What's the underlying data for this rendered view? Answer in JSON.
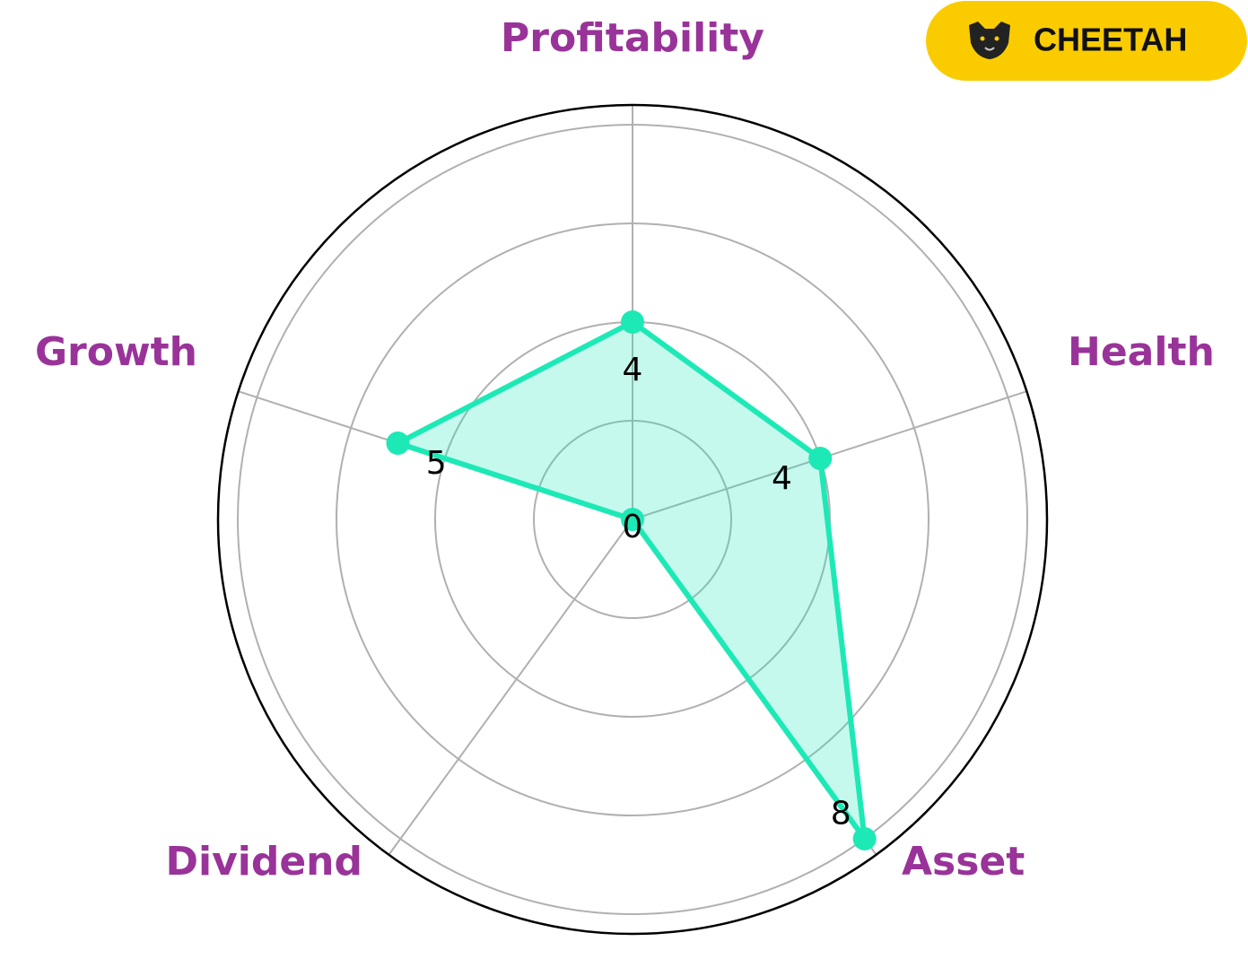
{
  "badge": {
    "label": "CHEETAH"
  },
  "chart_data": {
    "type": "radar",
    "categories": [
      "Profitability",
      "Health",
      "Asset",
      "Dividend",
      "Growth"
    ],
    "values": [
      4,
      4,
      8,
      0,
      5
    ],
    "color": "#1de9b6",
    "label_color": "#993399",
    "ylim": [
      0,
      8.4
    ],
    "yticks": [
      2,
      4,
      6,
      8
    ],
    "grid": true
  }
}
